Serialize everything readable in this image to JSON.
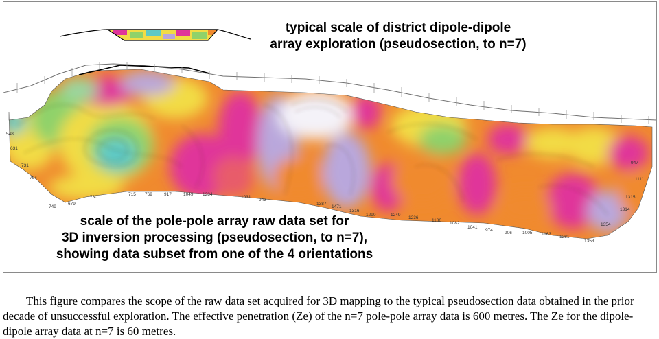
{
  "figure": {
    "top_label": [
      "typical scale of district dipole-dipole",
      "array exploration (pseudosection, to n=7)"
    ],
    "bottom_label": [
      "scale of  the pole-pole array raw data set for",
      "3D inversion processing (pseudosection, to n=7),",
      "showing data subset from one of the 4 orientations"
    ],
    "edge_values_left": [
      "548",
      "631",
      "731",
      "794",
      "749",
      "679"
    ],
    "bottom_edge_values": [
      "730",
      "715",
      "769",
      "917",
      "1049",
      "1284",
      "1031",
      "943",
      "1387",
      "1471",
      "1316",
      "1290",
      "1249",
      "1236",
      "1186",
      "1082",
      "1041",
      "974",
      "906",
      "1005",
      "1163",
      "1281",
      "1353"
    ],
    "edge_values_right": [
      "947",
      "1111",
      "1315",
      "1314",
      "1354"
    ],
    "colors": {
      "low_cyan": "#5fc9c4",
      "green": "#8fd26a",
      "yellow": "#f2dc45",
      "orange": "#f08a2e",
      "magenta": "#e0359a",
      "lavender": "#b9a7dc",
      "white_high": "#f4f2f8"
    }
  },
  "caption": {
    "text": "This figure compares the scope of the raw data set acquired for 3D mapping to the typical pseudosection data obtained in the prior decade of unsuccessful exploration.  The effective penetration (Ze) of the n=7 pole-pole array data is 600 metres. The Ze for the dipole-dipole array data at n=7 is 60 metres."
  }
}
